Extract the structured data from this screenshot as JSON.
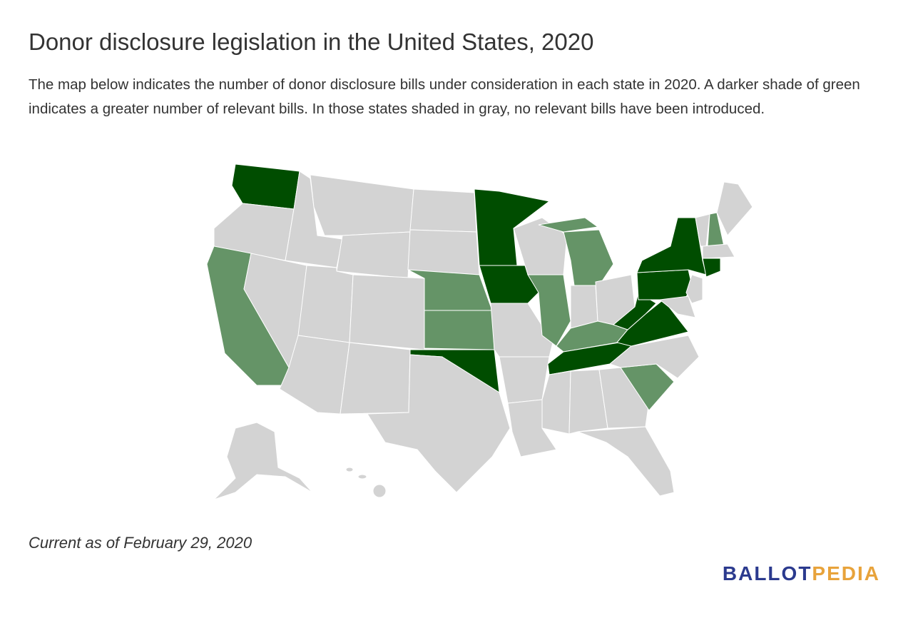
{
  "header": {
    "title": "Donor disclosure legislation in the United States, 2020",
    "description": "The map below indicates the number of donor disclosure bills under consideration in each state in 2020. A darker shade of green indicates a greater number of relevant bills. In those states shaded in gray, no relevant bills have been introduced."
  },
  "footer": {
    "note": "Current as of February 29, 2020",
    "logo_left": "BALLOT",
    "logo_right": "PEDIA"
  }
}
